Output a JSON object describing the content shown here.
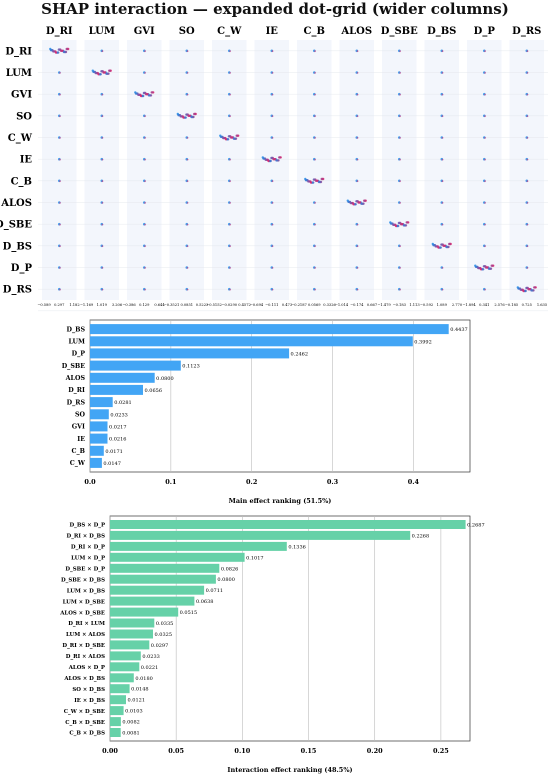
{
  "title": "SHAP interaction — expanded dot-grid (wider columns)",
  "colors": {
    "main_bar": "#42a5f5",
    "interaction_bar": "#66d1a8",
    "dot_low": "#1e88e5",
    "dot_high": "#e91e63",
    "panel_bg": "#f3f6fc"
  },
  "chart_data": [
    {
      "type": "scatter",
      "subtype": "shap-interaction-dot-grid",
      "features": [
        "D_RI",
        "LUM",
        "GVI",
        "SO",
        "C_W",
        "IE",
        "C_B",
        "ALOS",
        "D_SBE",
        "D_BS",
        "D_P",
        "D_RS"
      ],
      "column_tick_labels": [
        [
          "−0.589",
          "0.297",
          "1.182"
        ],
        [
          "−1.169",
          "1.019",
          "3.206"
        ],
        [
          "−0.386",
          "0.129",
          "0.644"
        ],
        [
          "−0.3521",
          "0.0851",
          "0.5223"
        ],
        [
          "−0.5152",
          "−0.0290",
          "0.4572"
        ],
        [
          "−0.694",
          "−0.111",
          "0.473"
        ],
        [
          "−0.2187",
          "0.0569",
          "0.3326"
        ],
        [
          "−1.014",
          "−0.174",
          "0.667"
        ],
        [
          "−1.479",
          "−0.183",
          "1.113"
        ],
        [
          "−0.592",
          "1.089",
          "2.770"
        ],
        [
          "−1.894",
          "0.341",
          "2.576"
        ],
        [
          "−0.185",
          "0.725",
          "1.635"
        ]
      ],
      "grid": true,
      "color_scale": "feature value low (blue) to high (pink)"
    },
    {
      "type": "bar",
      "orientation": "horizontal",
      "xlabel": "Main effect ranking (51.5%)",
      "categories": [
        "D_BS",
        "LUM",
        "D_P",
        "D_SBE",
        "ALOS",
        "D_RI",
        "D_RS",
        "SO",
        "GVI",
        "IE",
        "C_B",
        "C_W"
      ],
      "values": [
        0.4437,
        0.3992,
        0.2462,
        0.1123,
        0.08,
        0.0656,
        0.0281,
        0.0233,
        0.0217,
        0.0216,
        0.0171,
        0.0147
      ],
      "value_labels": [
        "0.4437",
        "0.3992",
        "0.2462",
        "0.1123",
        "0.0800",
        "0.0656",
        "0.0281",
        "0.0233",
        "0.0217",
        "0.0216",
        "0.0171",
        "0.0147"
      ],
      "xticks": [
        "0.0",
        "0.1",
        "0.2",
        "0.3",
        "0.4"
      ],
      "xlim": [
        0,
        0.47
      ],
      "grid": true
    },
    {
      "type": "bar",
      "orientation": "horizontal",
      "xlabel": "Interaction effect ranking (48.5%)",
      "categories": [
        "D_BS × D_P",
        "D_RI × D_BS",
        "D_RI × D_P",
        "LUM × D_P",
        "D_SBE × D_P",
        "D_SBE × D_BS",
        "LUM × D_BS",
        "LUM × D_SBE",
        "ALOS × D_SBE",
        "D_RI × LUM",
        "LUM × ALOS",
        "D_RI × D_SBE",
        "D_RI × ALOS",
        "ALOS × D_P",
        "ALOS × D_BS",
        "SO × D_BS",
        "IE × D_BS",
        "C_W × D_SBE",
        "C_B × D_SBE",
        "C_B × D_BS"
      ],
      "values": [
        0.2687,
        0.2268,
        0.1336,
        0.1017,
        0.0826,
        0.08,
        0.0711,
        0.0638,
        0.0515,
        0.0335,
        0.0325,
        0.0297,
        0.0233,
        0.0221,
        0.018,
        0.0148,
        0.0121,
        0.0103,
        0.0082,
        0.0081
      ],
      "value_labels": [
        "0.2687",
        "0.2268",
        "0.1336",
        "0.1017",
        "0.0826",
        "0.0800",
        "0.0711",
        "0.0638",
        "0.0515",
        "0.0335",
        "0.0325",
        "0.0297",
        "0.0233",
        "0.0221",
        "0.0180",
        "0.0148",
        "0.0121",
        "0.0103",
        "0.0082",
        "0.0081"
      ],
      "xticks": [
        "0.00",
        "0.05",
        "0.10",
        "0.15",
        "0.20",
        "0.25"
      ],
      "xlim": [
        0,
        0.272
      ],
      "grid": true
    }
  ]
}
